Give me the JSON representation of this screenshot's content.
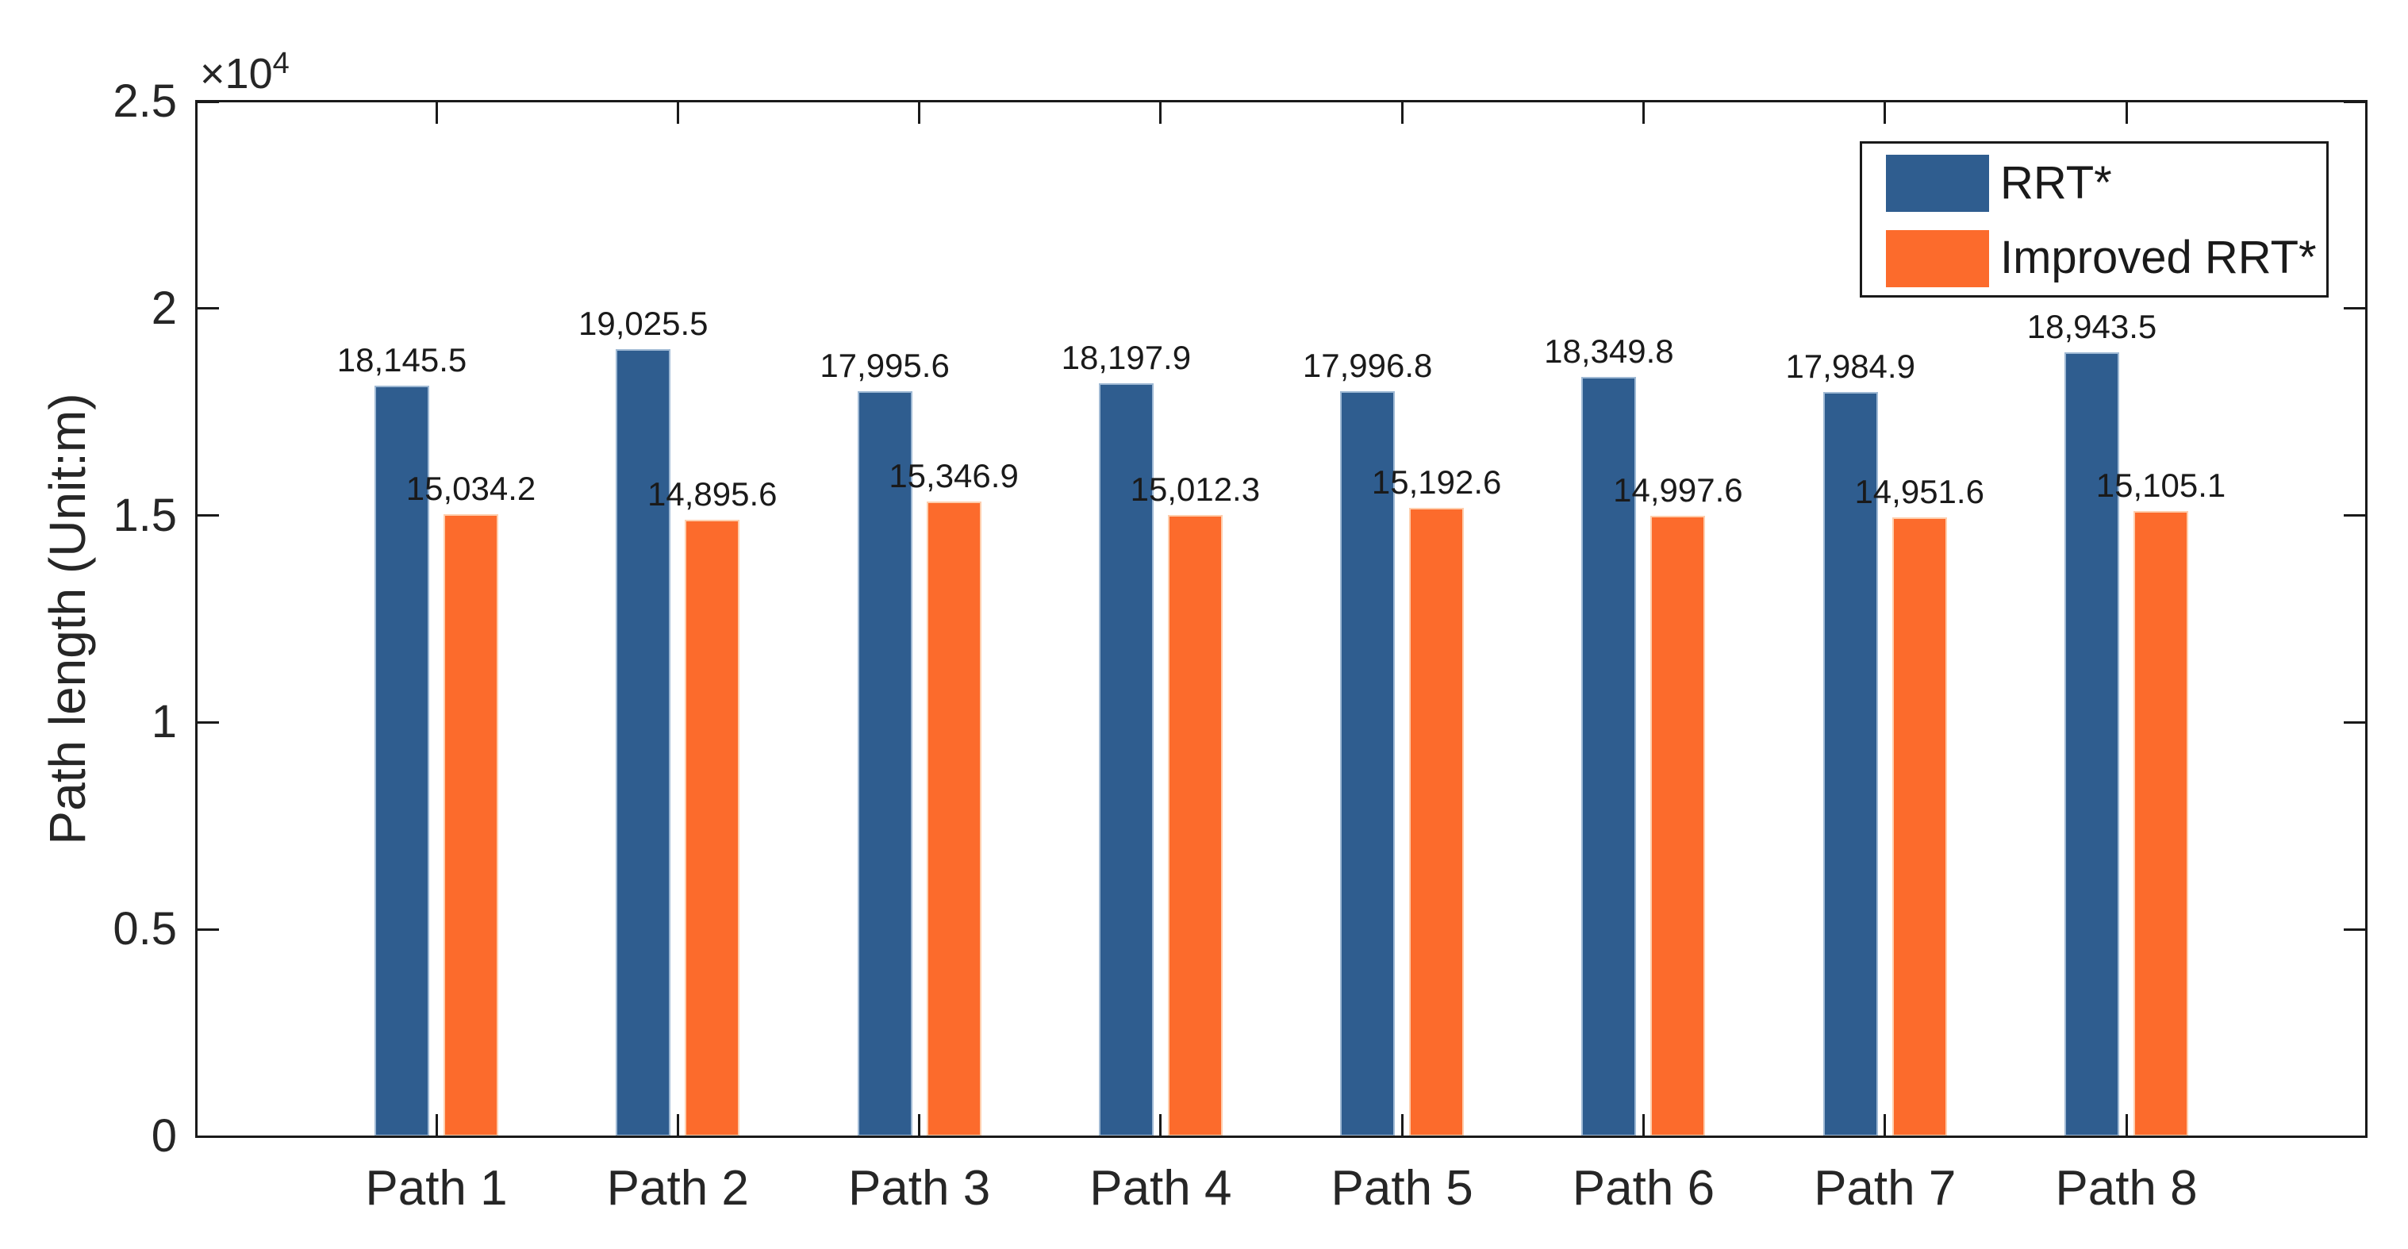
{
  "chart_data": {
    "type": "bar",
    "title": "",
    "xlabel": "",
    "ylabel": "Path length (Unit:m)",
    "y_axis_multiplier": {
      "base": "×10",
      "exponent": "4"
    },
    "ylim": [
      0,
      25000
    ],
    "grid": false,
    "legend_position": "top-right",
    "categories": [
      "Path 1",
      "Path 2",
      "Path 3",
      "Path 4",
      "Path 5",
      "Path 6",
      "Path 7",
      "Path 8"
    ],
    "yticks": [
      {
        "value": 0,
        "label": "0"
      },
      {
        "value": 5000,
        "label": "0.5"
      },
      {
        "value": 10000,
        "label": "1"
      },
      {
        "value": 15000,
        "label": "1.5"
      },
      {
        "value": 20000,
        "label": "2"
      },
      {
        "value": 25000,
        "label": "2.5"
      }
    ],
    "series": [
      {
        "name": "RRT*",
        "color": "#2f5d8f",
        "values": [
          18145.5,
          19025.5,
          17995.6,
          18197.9,
          17996.8,
          18349.8,
          17984.9,
          18943.5
        ],
        "labels": [
          "18,145.5",
          "19,025.5",
          "17,995.6",
          "18,197.9",
          "17,996.8",
          "18,349.8",
          "17,984.9",
          "18,943.5"
        ]
      },
      {
        "name": "Improved RRT*",
        "color": "#fc6b2c",
        "values": [
          15034.2,
          14895.6,
          15346.9,
          15012.3,
          15192.6,
          14997.6,
          14951.6,
          15105.1
        ],
        "labels": [
          "15,034.2",
          "14,895.6",
          "15,346.9",
          "15,012.3",
          "15,192.6",
          "14,997.6",
          "14,951.6",
          "15,105.1"
        ]
      }
    ]
  },
  "colors": {
    "background": "#ffffff",
    "axis": "#1a1a1a",
    "text": "#262626",
    "bar_blue": "#2f5d8f",
    "bar_orange": "#fc6b2c"
  }
}
